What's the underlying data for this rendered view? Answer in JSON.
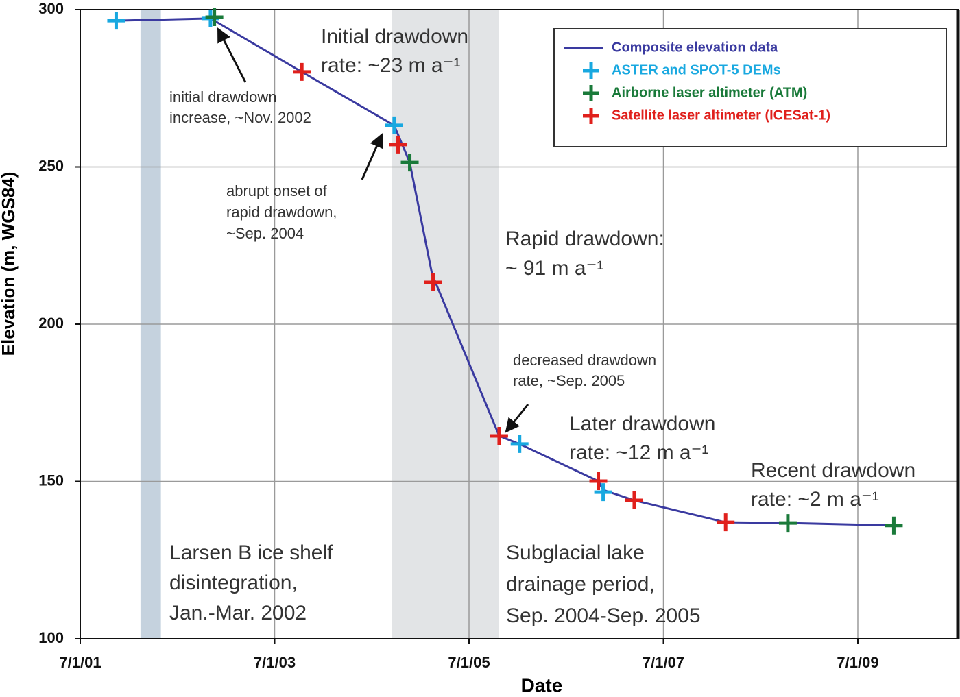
{
  "chart_data": {
    "type": "line",
    "xlabel": "Date",
    "ylabel": "Elevation (m, WGS84)",
    "xlim": [
      2001.5,
      2010.53
    ],
    "ylim": [
      100,
      300
    ],
    "xticks": [
      {
        "value": 2001.5,
        "label": "7/1/01"
      },
      {
        "value": 2003.5,
        "label": "7/1/03"
      },
      {
        "value": 2005.5,
        "label": "7/1/05"
      },
      {
        "value": 2007.5,
        "label": "7/1/07"
      },
      {
        "value": 2009.5,
        "label": "7/1/09"
      }
    ],
    "yticks": [
      100,
      150,
      200,
      250,
      300
    ],
    "grid": true,
    "legend": "upper right",
    "spans": [
      {
        "x0": 2002.12,
        "x1": 2002.33,
        "color": "#c5d2de"
      },
      {
        "x0": 2004.71,
        "x1": 2005.81,
        "color": "#e2e4e6"
      }
    ],
    "series": [
      {
        "name": "Composite elevation data",
        "color": "#3a3aa0",
        "style": "line",
        "x": [
          2001.87,
          2002.84,
          2003.78,
          2004.73,
          2004.89,
          2005.12,
          2005.81,
          2006.02,
          2006.83,
          2006.88,
          2007.2,
          2008.14,
          2008.78,
          2009.87
        ],
        "values": [
          296.5,
          297.2,
          280.2,
          263.2,
          251.4,
          215.9,
          164.5,
          161.9,
          150.1,
          147.3,
          144,
          137,
          136.8,
          136
        ]
      },
      {
        "name": "ASTER and SPOT-5 DEMs",
        "color": "#18a8e0",
        "style": "plus",
        "x": [
          2001.87,
          2002.84,
          2004.73,
          2006.02,
          2006.88
        ],
        "values": [
          296.5,
          297.2,
          263.2,
          161.9,
          146.6
        ]
      },
      {
        "name": "Airborne laser altimeter (ATM)",
        "color": "#1a7a3a",
        "style": "plus",
        "x": [
          2002.88,
          2004.89,
          2008.78,
          2009.87
        ],
        "values": [
          297.6,
          251.4,
          136.8,
          136
        ]
      },
      {
        "name": "Satellite laser altimeter (ICESat-1)",
        "color": "#e0201c",
        "style": "plus",
        "x": [
          2003.78,
          2004.77,
          2005.13,
          2005.81,
          2006.83,
          2007.2,
          2008.14
        ],
        "values": [
          280.2,
          257.1,
          213.3,
          164.5,
          150.1,
          144,
          137
        ]
      }
    ],
    "annotations": [
      {
        "lines": [
          "Initial drawdown",
          "rate: ~23 m a⁻¹"
        ]
      },
      {
        "lines": [
          "initial drawdown",
          "increase, ~Nov. 2002"
        ]
      },
      {
        "lines": [
          "abrupt onset of",
          "rapid drawdown,",
          "~Sep. 2004"
        ]
      },
      {
        "lines": [
          "Rapid drawdown:",
          "~ 91 m a⁻¹"
        ]
      },
      {
        "lines": [
          "decreased drawdown",
          "rate, ~Sep. 2005"
        ]
      },
      {
        "lines": [
          "Later drawdown",
          "rate: ~12 m a⁻¹"
        ]
      },
      {
        "lines": [
          "Recent drawdown",
          "rate: ~2 m a⁻¹"
        ]
      },
      {
        "lines": [
          "Larsen B ice shelf",
          "disintegration,",
          "Jan.-Mar. 2002"
        ]
      },
      {
        "lines": [
          "Subglacial lake",
          "drainage period,",
          "Sep. 2004-Sep. 2005"
        ]
      }
    ]
  }
}
